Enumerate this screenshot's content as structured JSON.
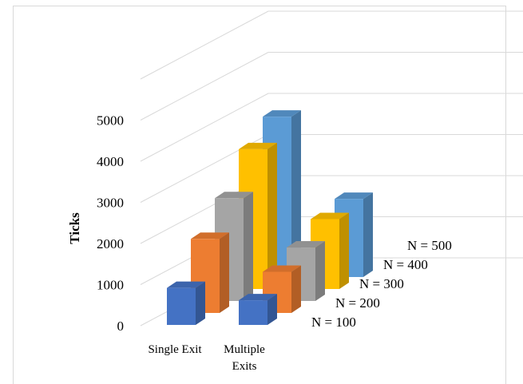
{
  "chart_data": {
    "type": "bar",
    "subtype": "3d-column",
    "categories": [
      "Single Exit",
      "Multiple\nExits"
    ],
    "series": [
      {
        "name": "N = 100",
        "values": [
          900,
          600
        ],
        "color": "#4472c4"
      },
      {
        "name": "N = 200",
        "values": [
          1800,
          1000
        ],
        "color": "#ed7d31"
      },
      {
        "name": "N = 300",
        "values": [
          2500,
          1300
        ],
        "color": "#a5a5a5"
      },
      {
        "name": "N = 400",
        "values": [
          3400,
          1700
        ],
        "color": "#ffc000"
      },
      {
        "name": "N = 500",
        "values": [
          3900,
          1900
        ],
        "color": "#5b9bd5"
      }
    ],
    "ylabel": "Ticks",
    "yticks": [
      0,
      1000,
      2000,
      3000,
      4000,
      5000
    ],
    "ylim": [
      0,
      5000
    ],
    "grid": true
  }
}
